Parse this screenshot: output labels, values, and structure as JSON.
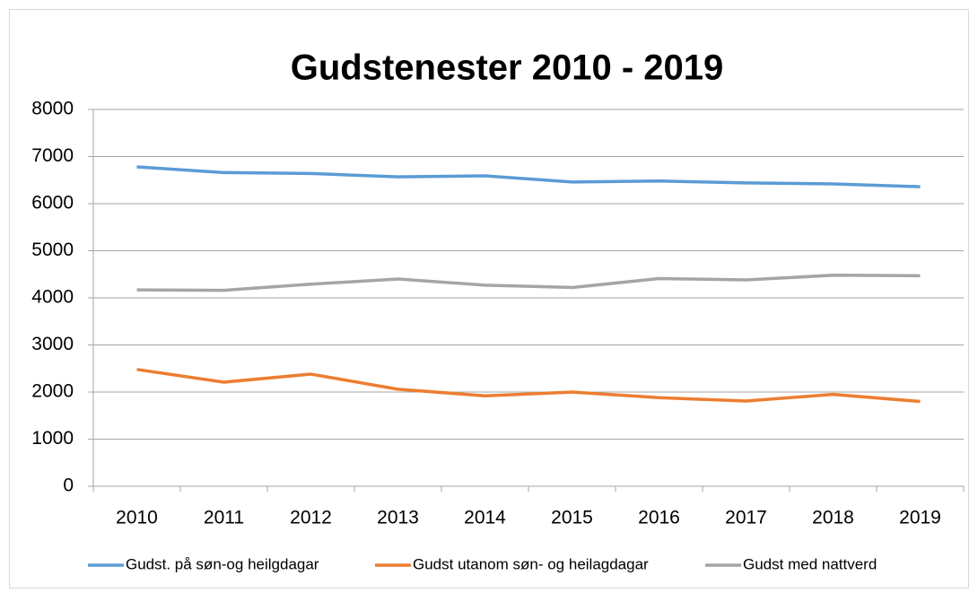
{
  "chart_data": {
    "type": "line",
    "title": "Gudstenester 2010 - 2019",
    "categories": [
      "2010",
      "2011",
      "2012",
      "2013",
      "2014",
      "2015",
      "2016",
      "2017",
      "2018",
      "2019"
    ],
    "series": [
      {
        "name": "Gudst. på søn-og heilgdagar",
        "color": "#5b9bd5",
        "values": [
          6780,
          6660,
          6640,
          6570,
          6590,
          6460,
          6480,
          6440,
          6420,
          6360
        ]
      },
      {
        "name": "Gudst utanom søn- og heilagdagar",
        "color": "#ed7d31",
        "values": [
          2480,
          2210,
          2380,
          2060,
          1920,
          2000,
          1880,
          1810,
          1950,
          1800
        ]
      },
      {
        "name": "Gudst med nattverd",
        "color": "#a5a5a5",
        "values": [
          4170,
          4160,
          4290,
          4400,
          4270,
          4220,
          4410,
          4380,
          4480,
          4470
        ]
      }
    ],
    "ylim": [
      0,
      8000
    ],
    "yticks": [
      0,
      1000,
      2000,
      3000,
      4000,
      5000,
      6000,
      7000,
      8000
    ],
    "grid": true,
    "legend": "bottom"
  }
}
